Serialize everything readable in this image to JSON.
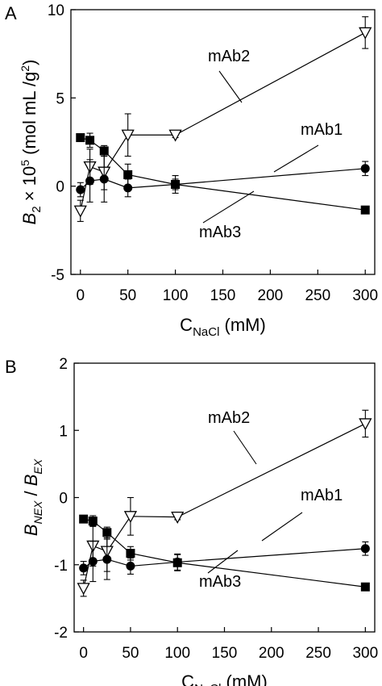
{
  "chart_data": [
    {
      "type": "line",
      "panel_label": "A",
      "xlabel": {
        "main": "C",
        "sub": "NaCl",
        "unit": " (mM)"
      },
      "ylabel": {
        "main": "B",
        "sub": "2",
        "rest": " × 10",
        "sup": "5",
        "unit": " (mol mL /g",
        "unit_sup": "2",
        "close": ")"
      },
      "xlim": [
        -10,
        310
      ],
      "ylim": [
        -5,
        10
      ],
      "xticks": [
        0,
        50,
        100,
        150,
        200,
        250,
        300
      ],
      "yticks": [
        -5,
        0,
        5,
        10
      ],
      "grid": false,
      "series": [
        {
          "name": "mAb2",
          "marker": "open-triangle-down",
          "x": [
            0,
            10,
            25,
            50,
            100,
            300
          ],
          "y": [
            -1.4,
            1.1,
            0.8,
            2.9,
            2.9,
            8.7
          ],
          "err": [
            0.6,
            1.0,
            1.0,
            1.2,
            0.15,
            0.9
          ]
        },
        {
          "name": "mAb1",
          "marker": "filled-circle",
          "x": [
            0,
            10,
            25,
            50,
            100,
            300
          ],
          "y": [
            -0.2,
            0.3,
            0.4,
            -0.1,
            0.1,
            1.0
          ],
          "err": [
            0.4,
            1.2,
            1.3,
            0.5,
            0.5,
            0.4
          ]
        },
        {
          "name": "mAb3",
          "marker": "filled-square",
          "x": [
            0,
            10,
            25,
            50,
            100,
            300
          ],
          "y": [
            2.75,
            2.6,
            2.0,
            0.65,
            0.1,
            -1.35
          ],
          "err": [
            0.15,
            0.4,
            0.3,
            0.6,
            0.3,
            0.1
          ]
        }
      ]
    },
    {
      "type": "line",
      "panel_label": "B",
      "xlabel": {
        "main": "C",
        "sub": "NaCl",
        "unit": " (mM)"
      },
      "ylabel": {
        "main": "B",
        "sub": "NEX",
        "mid": " / ",
        "main2": "B",
        "sub2": "EX"
      },
      "xlim": [
        -10,
        310
      ],
      "ylim": [
        -2,
        2
      ],
      "xticks": [
        0,
        50,
        100,
        150,
        200,
        250,
        300
      ],
      "yticks": [
        -2,
        -1,
        0,
        1,
        2
      ],
      "grid": false,
      "series": [
        {
          "name": "mAb2",
          "marker": "open-triangle-down",
          "x": [
            0,
            10,
            25,
            50,
            100,
            300
          ],
          "y": [
            -1.35,
            -0.72,
            -0.8,
            -0.28,
            -0.29,
            1.1
          ],
          "err": [
            0.12,
            0.3,
            0.3,
            0.28,
            0.04,
            0.2
          ]
        },
        {
          "name": "mAb1",
          "marker": "filled-circle",
          "x": [
            0,
            10,
            25,
            50,
            100,
            300
          ],
          "y": [
            -1.05,
            -0.95,
            -0.92,
            -1.02,
            -0.96,
            -0.76
          ],
          "err": [
            0.1,
            0.3,
            0.3,
            0.12,
            0.12,
            0.1
          ]
        },
        {
          "name": "mAb3",
          "marker": "filled-square",
          "x": [
            0,
            10,
            25,
            50,
            100,
            300
          ],
          "y": [
            -0.32,
            -0.35,
            -0.52,
            -0.83,
            -0.97,
            -1.33
          ],
          "err": [
            0.04,
            0.08,
            0.08,
            0.1,
            0.12,
            0.04
          ]
        }
      ]
    }
  ]
}
